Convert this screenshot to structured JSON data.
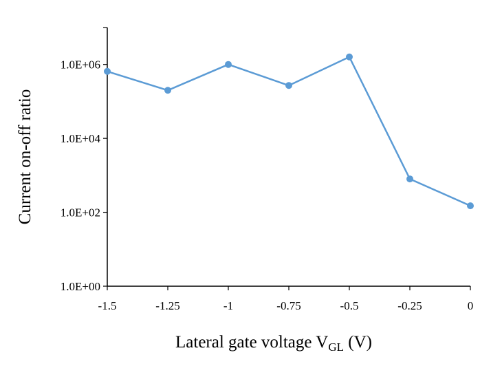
{
  "chart_data": {
    "type": "line",
    "title": "",
    "xlabel": {
      "main": "Lateral gate voltage V",
      "subscript": "GL",
      "suffix": " (V)"
    },
    "ylabel": "Current on-off ratio",
    "y_scale": "log",
    "xlim": [
      -1.5,
      0
    ],
    "ylim": [
      1,
      10000000
    ],
    "x_ticks": [
      "-1.5",
      "-1.25",
      "-1",
      "-0.75",
      "-0.5",
      "-0.25",
      "0"
    ],
    "y_ticks": [
      "1.0E+00",
      "1.0E+02",
      "1.0E+04",
      "1.0E+06"
    ],
    "grid": false,
    "legend": "none",
    "series": [
      {
        "color": "#5b9bd5",
        "x": [
          -1.5,
          -1.25,
          -1,
          -0.75,
          -0.5,
          -0.25,
          0
        ],
        "y": [
          650000,
          200000,
          1000000,
          270000,
          1600000,
          800,
          150
        ]
      }
    ]
  }
}
